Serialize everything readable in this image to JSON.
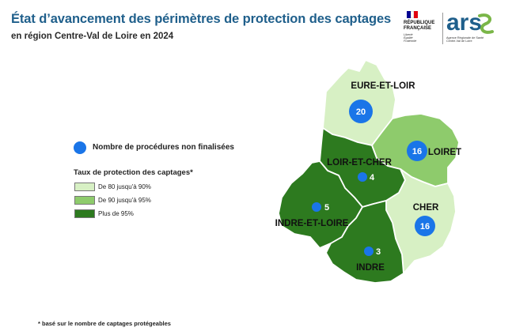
{
  "header": {
    "title": "État d’avancement des périmètres de protection des captages",
    "subtitle": "en région Centre-Val de Loire en 2024"
  },
  "logos": {
    "republique": {
      "text": "RÉPUBLIQUE\nFRANÇAISE",
      "motto": "Liberté\nÉgalité\nFraternité",
      "flag_colors": [
        "#000091",
        "#ffffff",
        "#e1000f"
      ]
    },
    "ars": {
      "text": "ars",
      "sub": "Agence Régionale de Santé\nCentre-Val de Loire",
      "color_main": "#1f5f8b",
      "color_accent": "#7ab648"
    }
  },
  "legend": {
    "dot_label": "Nombre de procédures non finalisées",
    "dot_color": "#1a75e8",
    "rate_title": "Taux de protection des captages*",
    "classes": [
      {
        "label": "De 80 jusqu'à 90%",
        "color": "#d7f0c4"
      },
      {
        "label": "De 90 jusqu'à 95%",
        "color": "#8ecb6c"
      },
      {
        "label": "Plus de 95%",
        "color": "#2d7a1f"
      }
    ]
  },
  "map": {
    "departments": [
      {
        "name": "EURE-ET-LOIR",
        "class": 0,
        "procedures": "20"
      },
      {
        "name": "LOIRET",
        "class": 1,
        "procedures": "16"
      },
      {
        "name": "LOIR-ET-CHER",
        "class": 2,
        "procedures": "4"
      },
      {
        "name": "INDRE-ET-LOIRE",
        "class": 2,
        "procedures": "5"
      },
      {
        "name": "CHER",
        "class": 0,
        "procedures": "16"
      },
      {
        "name": "INDRE",
        "class": 2,
        "procedures": "3"
      }
    ]
  },
  "footnote": "* basé sur le nombre de captages protégeables"
}
